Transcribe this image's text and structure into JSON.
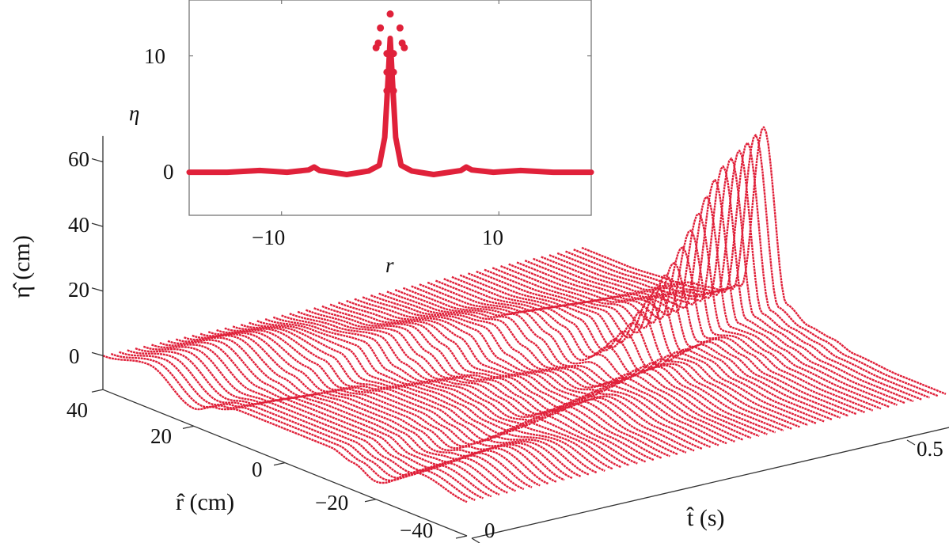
{
  "chart_data": [
    {
      "type": "line",
      "subtype": "3d-waterfall",
      "title": "",
      "xlabel": "t̂ (s)",
      "ylabel": "r̂ (cm)",
      "zlabel": "η̂ (cm)",
      "t_range": [
        0,
        0.55
      ],
      "r_range": [
        -40,
        40
      ],
      "z_range": [
        -10.5,
        68
      ],
      "t_ticks": [
        "0",
        "0.5"
      ],
      "r_ticks": [
        "40",
        "20",
        "0",
        "−20",
        "−40"
      ],
      "z_ticks": [
        "60",
        "40",
        "20",
        "0"
      ],
      "line_count": 60,
      "color": "#e0213a",
      "surface": {
        "r": [
          -40,
          -30,
          -20,
          -15,
          -10,
          -5,
          0,
          5,
          10,
          15,
          20,
          30,
          40
        ],
        "t": [
          0,
          0.05,
          0.1,
          0.15,
          0.2,
          0.25,
          0.3,
          0.35,
          0.4,
          0.45,
          0.5,
          0.55
        ],
        "eta": [
          [
            0,
            3,
            -5,
            -2,
            0,
            0,
            0,
            0,
            0,
            -2,
            -5,
            3,
            0
          ],
          [
            0,
            4,
            -4,
            -3,
            0,
            0,
            0,
            0,
            0,
            -3,
            -4,
            4,
            0
          ],
          [
            0,
            5,
            -2,
            -4,
            -1,
            0,
            0,
            0,
            -1,
            -4,
            -2,
            5,
            0
          ],
          [
            0,
            4,
            1,
            -4,
            -2,
            0,
            0,
            0,
            -2,
            -4,
            1,
            4,
            0
          ],
          [
            0,
            2,
            4,
            -2,
            -3,
            -1,
            0,
            -1,
            -3,
            -2,
            4,
            2,
            0
          ],
          [
            0,
            1,
            5,
            1,
            -4,
            -2,
            0,
            -2,
            -4,
            1,
            5,
            1,
            0
          ],
          [
            0,
            1,
            4,
            4,
            -2,
            -3,
            -1,
            -3,
            -2,
            4,
            4,
            1,
            0
          ],
          [
            0,
            0,
            3,
            6,
            2,
            -4,
            -2,
            -4,
            2,
            6,
            3,
            0,
            0
          ],
          [
            0,
            0,
            2,
            5,
            5,
            -2,
            8,
            -2,
            5,
            5,
            2,
            0,
            0
          ],
          [
            0,
            0,
            1,
            4,
            6,
            3,
            25,
            3,
            6,
            4,
            1,
            0,
            0
          ],
          [
            0,
            0,
            1,
            3,
            5,
            6,
            50,
            6,
            5,
            3,
            1,
            0,
            0
          ],
          [
            0,
            0,
            1,
            3,
            4,
            8,
            60,
            8,
            4,
            3,
            1,
            0,
            0
          ]
        ]
      }
    },
    {
      "type": "scatter",
      "subtype": "inset",
      "title": "",
      "xlabel": "r",
      "ylabel": "η",
      "xlim": [
        -18.5,
        18.5
      ],
      "ylim": [
        -3.7,
        14.8
      ],
      "x_ticks": [
        {
          "value": -10,
          "label": "−10"
        },
        {
          "value": 10,
          "label": "10"
        }
      ],
      "y_ticks": [
        {
          "value": 0,
          "label": "0"
        },
        {
          "value": 10,
          "label": "10"
        }
      ],
      "color": "#e0213a",
      "profile": {
        "r": [
          -18.5,
          -15,
          -12,
          -9.5,
          -7.5,
          -7,
          -6.5,
          -4,
          -2,
          -1,
          -0.5,
          -0.2,
          0,
          0.2,
          0.5,
          1,
          2,
          4,
          6.5,
          7,
          7.5,
          9.5,
          12,
          15,
          18.5
        ],
        "eta": [
          0,
          0,
          0.15,
          0,
          0.2,
          0.45,
          0.15,
          -0.2,
          0.1,
          0.6,
          3,
          8,
          11.5,
          8,
          3,
          0.6,
          0.1,
          -0.2,
          0.15,
          0.45,
          0.2,
          0,
          0.15,
          0,
          0
        ]
      },
      "points": {
        "r": [
          0,
          -0.9,
          0.9,
          -1.3,
          1.3,
          -1.1,
          1.1,
          -0.3,
          0.3,
          -0.3,
          0.3,
          -0.3,
          0.3
        ],
        "eta": [
          13.6,
          12.4,
          12.4,
          10.7,
          10.7,
          11.1,
          11.1,
          10.2,
          10.2,
          8.6,
          8.6,
          7,
          7
        ]
      }
    }
  ]
}
